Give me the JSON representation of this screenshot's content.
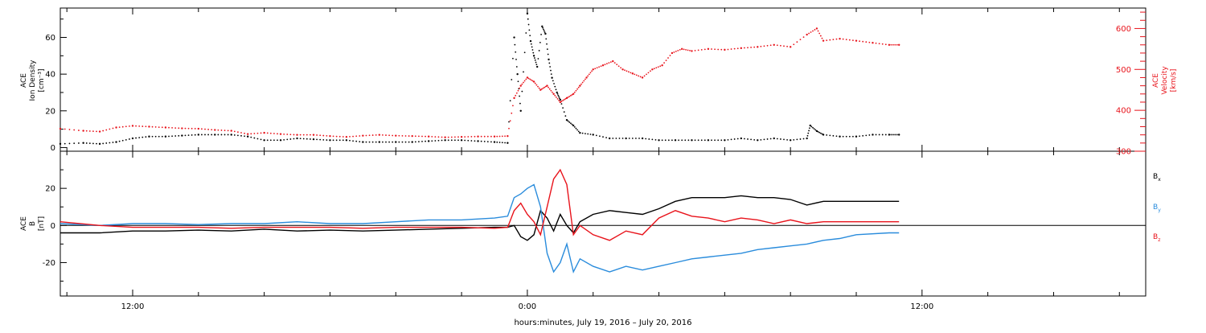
{
  "chart_data": [
    {
      "type": "scatter",
      "panel": "top",
      "ylabel_left": [
        "ACE",
        "Ion Density",
        "[cm⁻³]"
      ],
      "ylabel_right": [
        "ACE",
        "Velocity",
        "[km/s]"
      ],
      "left_axis": {
        "ylim": [
          -2,
          76
        ],
        "ticks": [
          0,
          20,
          40,
          60
        ],
        "tick_labels": [
          "0",
          "20",
          "40",
          "60"
        ]
      },
      "right_axis": {
        "ylim": [
          300,
          650
        ],
        "ticks": [
          300,
          400,
          500,
          600
        ],
        "tick_labels": [
          "300",
          "400",
          "500",
          "600"
        ],
        "color": "#e8131b"
      },
      "series": [
        {
          "axis": "left",
          "color": "#000000",
          "points": [
            [
              -14.2,
              2
            ],
            [
              -13.5,
              2.5
            ],
            [
              -13,
              2
            ],
            [
              -12.5,
              3
            ],
            [
              -12,
              5
            ],
            [
              -11.5,
              6
            ],
            [
              -11,
              6
            ],
            [
              -10.5,
              6.5
            ],
            [
              -10,
              7
            ],
            [
              -9.5,
              7
            ],
            [
              -9,
              7
            ],
            [
              -8.5,
              6
            ],
            [
              -8,
              4
            ],
            [
              -7.5,
              4
            ],
            [
              -7,
              5
            ],
            [
              -6.5,
              4.5
            ],
            [
              -6,
              4
            ],
            [
              -5.5,
              4
            ],
            [
              -5,
              3
            ],
            [
              -4.5,
              3
            ],
            [
              -4,
              3
            ],
            [
              -3.5,
              3
            ],
            [
              -3,
              3.5
            ],
            [
              -2.5,
              4
            ],
            [
              -2,
              4
            ],
            [
              -1.5,
              3.5
            ],
            [
              -1,
              3
            ],
            [
              -0.6,
              2.5
            ],
            [
              -0.4,
              60
            ],
            [
              -0.3,
              40
            ],
            [
              -0.2,
              20
            ],
            [
              0,
              73
            ],
            [
              0.1,
              58
            ],
            [
              0.2,
              50
            ],
            [
              0.3,
              44
            ],
            [
              0.45,
              66
            ],
            [
              0.55,
              62
            ],
            [
              0.65,
              48
            ],
            [
              0.75,
              38
            ],
            [
              0.9,
              30
            ],
            [
              1.0,
              26
            ],
            [
              1.2,
              15
            ],
            [
              1.4,
              12
            ],
            [
              1.6,
              8
            ],
            [
              2,
              7
            ],
            [
              2.5,
              5
            ],
            [
              3,
              5
            ],
            [
              3.5,
              5
            ],
            [
              4,
              4
            ],
            [
              4.5,
              4
            ],
            [
              5,
              4
            ],
            [
              5.5,
              4
            ],
            [
              6,
              4
            ],
            [
              6.5,
              5
            ],
            [
              7,
              4
            ],
            [
              7.5,
              5
            ],
            [
              8,
              4
            ],
            [
              8.5,
              5
            ],
            [
              8.6,
              12
            ],
            [
              8.8,
              9
            ],
            [
              9,
              7
            ],
            [
              9.5,
              6
            ],
            [
              10,
              6
            ],
            [
              10.5,
              7
            ],
            [
              11,
              7
            ],
            [
              11.3,
              7
            ]
          ]
        },
        {
          "axis": "right",
          "color": "#e8131b",
          "points": [
            [
              -14.2,
              355
            ],
            [
              -13.5,
              350
            ],
            [
              -13,
              348
            ],
            [
              -12.5,
              358
            ],
            [
              -12,
              362
            ],
            [
              -11.5,
              360
            ],
            [
              -11,
              358
            ],
            [
              -10.5,
              356
            ],
            [
              -10,
              355
            ],
            [
              -9.5,
              352
            ],
            [
              -9,
              350
            ],
            [
              -8.5,
              342
            ],
            [
              -8,
              345
            ],
            [
              -7.5,
              342
            ],
            [
              -7,
              340
            ],
            [
              -6.5,
              340
            ],
            [
              -6,
              337
            ],
            [
              -5.5,
              335
            ],
            [
              -5,
              338
            ],
            [
              -4.5,
              340
            ],
            [
              -4,
              338
            ],
            [
              -3.5,
              337
            ],
            [
              -3,
              336
            ],
            [
              -2.5,
              334
            ],
            [
              -2,
              335
            ],
            [
              -1.5,
              336
            ],
            [
              -1,
              336
            ],
            [
              -0.6,
              337
            ],
            [
              -0.4,
              430
            ],
            [
              -0.2,
              460
            ],
            [
              0,
              480
            ],
            [
              0.2,
              470
            ],
            [
              0.4,
              450
            ],
            [
              0.6,
              460
            ],
            [
              0.8,
              440
            ],
            [
              1.0,
              420
            ],
            [
              1.2,
              430
            ],
            [
              1.4,
              440
            ],
            [
              1.6,
              460
            ],
            [
              1.8,
              480
            ],
            [
              2,
              500
            ],
            [
              2.3,
              510
            ],
            [
              2.6,
              520
            ],
            [
              2.9,
              500
            ],
            [
              3.2,
              490
            ],
            [
              3.5,
              480
            ],
            [
              3.8,
              500
            ],
            [
              4.1,
              510
            ],
            [
              4.4,
              540
            ],
            [
              4.7,
              550
            ],
            [
              5,
              545
            ],
            [
              5.5,
              550
            ],
            [
              6,
              548
            ],
            [
              6.5,
              552
            ],
            [
              7,
              555
            ],
            [
              7.5,
              560
            ],
            [
              8,
              555
            ],
            [
              8.5,
              585
            ],
            [
              8.8,
              600
            ],
            [
              9,
              570
            ],
            [
              9.5,
              575
            ],
            [
              10,
              570
            ],
            [
              10.5,
              565
            ],
            [
              11,
              560
            ],
            [
              11.3,
              560
            ]
          ]
        }
      ]
    },
    {
      "type": "line",
      "panel": "bottom",
      "ylabel_left": [
        "ACE",
        "B",
        "[nT]"
      ],
      "ylim": [
        -38,
        40
      ],
      "ticks": [
        -20,
        0,
        20
      ],
      "tick_labels": [
        "-20",
        "0",
        "20"
      ],
      "zero_line": true,
      "legend": {
        "position": "right",
        "entries": [
          {
            "label": "B",
            "sub": "x",
            "color": "#000000"
          },
          {
            "label": "B",
            "sub": "y",
            "color": "#2a8cdc"
          },
          {
            "label": "B",
            "sub": "z",
            "color": "#e8131b"
          }
        ]
      },
      "series": [
        {
          "name": "Bx",
          "color": "#000000",
          "points": [
            [
              -14.2,
              -4
            ],
            [
              -13,
              -4
            ],
            [
              -12,
              -3
            ],
            [
              -11,
              -3
            ],
            [
              -10,
              -2.5
            ],
            [
              -9,
              -3
            ],
            [
              -8,
              -2
            ],
            [
              -7,
              -3
            ],
            [
              -6,
              -2.5
            ],
            [
              -5,
              -3
            ],
            [
              -4,
              -2.5
            ],
            [
              -3,
              -2
            ],
            [
              -2,
              -1.5
            ],
            [
              -1,
              -1
            ],
            [
              -0.6,
              -1
            ],
            [
              -0.4,
              0
            ],
            [
              -0.2,
              -6
            ],
            [
              0,
              -8
            ],
            [
              0.2,
              -5
            ],
            [
              0.4,
              8
            ],
            [
              0.6,
              4
            ],
            [
              0.8,
              -3
            ],
            [
              1.0,
              6
            ],
            [
              1.2,
              0
            ],
            [
              1.4,
              -4
            ],
            [
              1.6,
              2
            ],
            [
              2,
              6
            ],
            [
              2.5,
              8
            ],
            [
              3,
              7
            ],
            [
              3.5,
              6
            ],
            [
              4,
              9
            ],
            [
              4.5,
              13
            ],
            [
              5,
              15
            ],
            [
              5.5,
              15
            ],
            [
              6,
              15
            ],
            [
              6.5,
              16
            ],
            [
              7,
              15
            ],
            [
              7.5,
              15
            ],
            [
              8,
              14
            ],
            [
              8.5,
              11
            ],
            [
              9,
              13
            ],
            [
              10,
              13
            ],
            [
              11,
              13
            ],
            [
              11.3,
              13
            ]
          ]
        },
        {
          "name": "By",
          "color": "#2a8cdc",
          "points": [
            [
              -14.2,
              1
            ],
            [
              -13,
              0
            ],
            [
              -12,
              1
            ],
            [
              -11,
              1
            ],
            [
              -10,
              0.5
            ],
            [
              -9,
              1
            ],
            [
              -8,
              1
            ],
            [
              -7,
              2
            ],
            [
              -6,
              1
            ],
            [
              -5,
              1
            ],
            [
              -4,
              2
            ],
            [
              -3,
              3
            ],
            [
              -2,
              3
            ],
            [
              -1,
              4
            ],
            [
              -0.6,
              5
            ],
            [
              -0.4,
              15
            ],
            [
              -0.2,
              17
            ],
            [
              0,
              20
            ],
            [
              0.2,
              22
            ],
            [
              0.4,
              10
            ],
            [
              0.6,
              -15
            ],
            [
              0.8,
              -25
            ],
            [
              1.0,
              -20
            ],
            [
              1.2,
              -10
            ],
            [
              1.4,
              -25
            ],
            [
              1.6,
              -18
            ],
            [
              2,
              -22
            ],
            [
              2.5,
              -25
            ],
            [
              3,
              -22
            ],
            [
              3.5,
              -24
            ],
            [
              4,
              -22
            ],
            [
              4.5,
              -20
            ],
            [
              5,
              -18
            ],
            [
              5.5,
              -17
            ],
            [
              6,
              -16
            ],
            [
              6.5,
              -15
            ],
            [
              7,
              -13
            ],
            [
              7.5,
              -12
            ],
            [
              8,
              -11
            ],
            [
              8.5,
              -10
            ],
            [
              9,
              -8
            ],
            [
              9.5,
              -7
            ],
            [
              10,
              -5
            ],
            [
              11,
              -4
            ],
            [
              11.3,
              -4
            ]
          ]
        },
        {
          "name": "Bz",
          "color": "#e8131b",
          "points": [
            [
              -14.2,
              2
            ],
            [
              -13,
              0
            ],
            [
              -12,
              -1
            ],
            [
              -11,
              -1
            ],
            [
              -10,
              -1
            ],
            [
              -9,
              -1.5
            ],
            [
              -8,
              -1
            ],
            [
              -7,
              -1
            ],
            [
              -6,
              -1
            ],
            [
              -5,
              -1.5
            ],
            [
              -4,
              -1
            ],
            [
              -3,
              -1
            ],
            [
              -2,
              -1
            ],
            [
              -1,
              -1.5
            ],
            [
              -0.6,
              -1
            ],
            [
              -0.4,
              8
            ],
            [
              -0.2,
              12
            ],
            [
              0,
              6
            ],
            [
              0.2,
              2
            ],
            [
              0.4,
              -5
            ],
            [
              0.6,
              10
            ],
            [
              0.8,
              25
            ],
            [
              1.0,
              30
            ],
            [
              1.2,
              22
            ],
            [
              1.4,
              -5
            ],
            [
              1.6,
              0
            ],
            [
              2,
              -5
            ],
            [
              2.5,
              -8
            ],
            [
              3,
              -3
            ],
            [
              3.5,
              -5
            ],
            [
              4,
              4
            ],
            [
              4.5,
              8
            ],
            [
              5,
              5
            ],
            [
              5.5,
              4
            ],
            [
              6,
              2
            ],
            [
              6.5,
              4
            ],
            [
              7,
              3
            ],
            [
              7.5,
              1
            ],
            [
              8,
              3
            ],
            [
              8.5,
              1
            ],
            [
              9,
              2
            ],
            [
              10,
              2
            ],
            [
              11,
              2
            ],
            [
              11.3,
              2
            ]
          ]
        }
      ]
    }
  ],
  "x_axis": {
    "range_hours": [
      -14.2,
      18.8
    ],
    "tick_labels": [
      {
        "hour": -12,
        "label": "12:00"
      },
      {
        "hour": 0,
        "label": "0:00"
      },
      {
        "hour": 12,
        "label": "12:00"
      }
    ],
    "minor_tick_step_hours": 2,
    "label": "hours:minutes, July 19, 2016 – July 20, 2016"
  }
}
